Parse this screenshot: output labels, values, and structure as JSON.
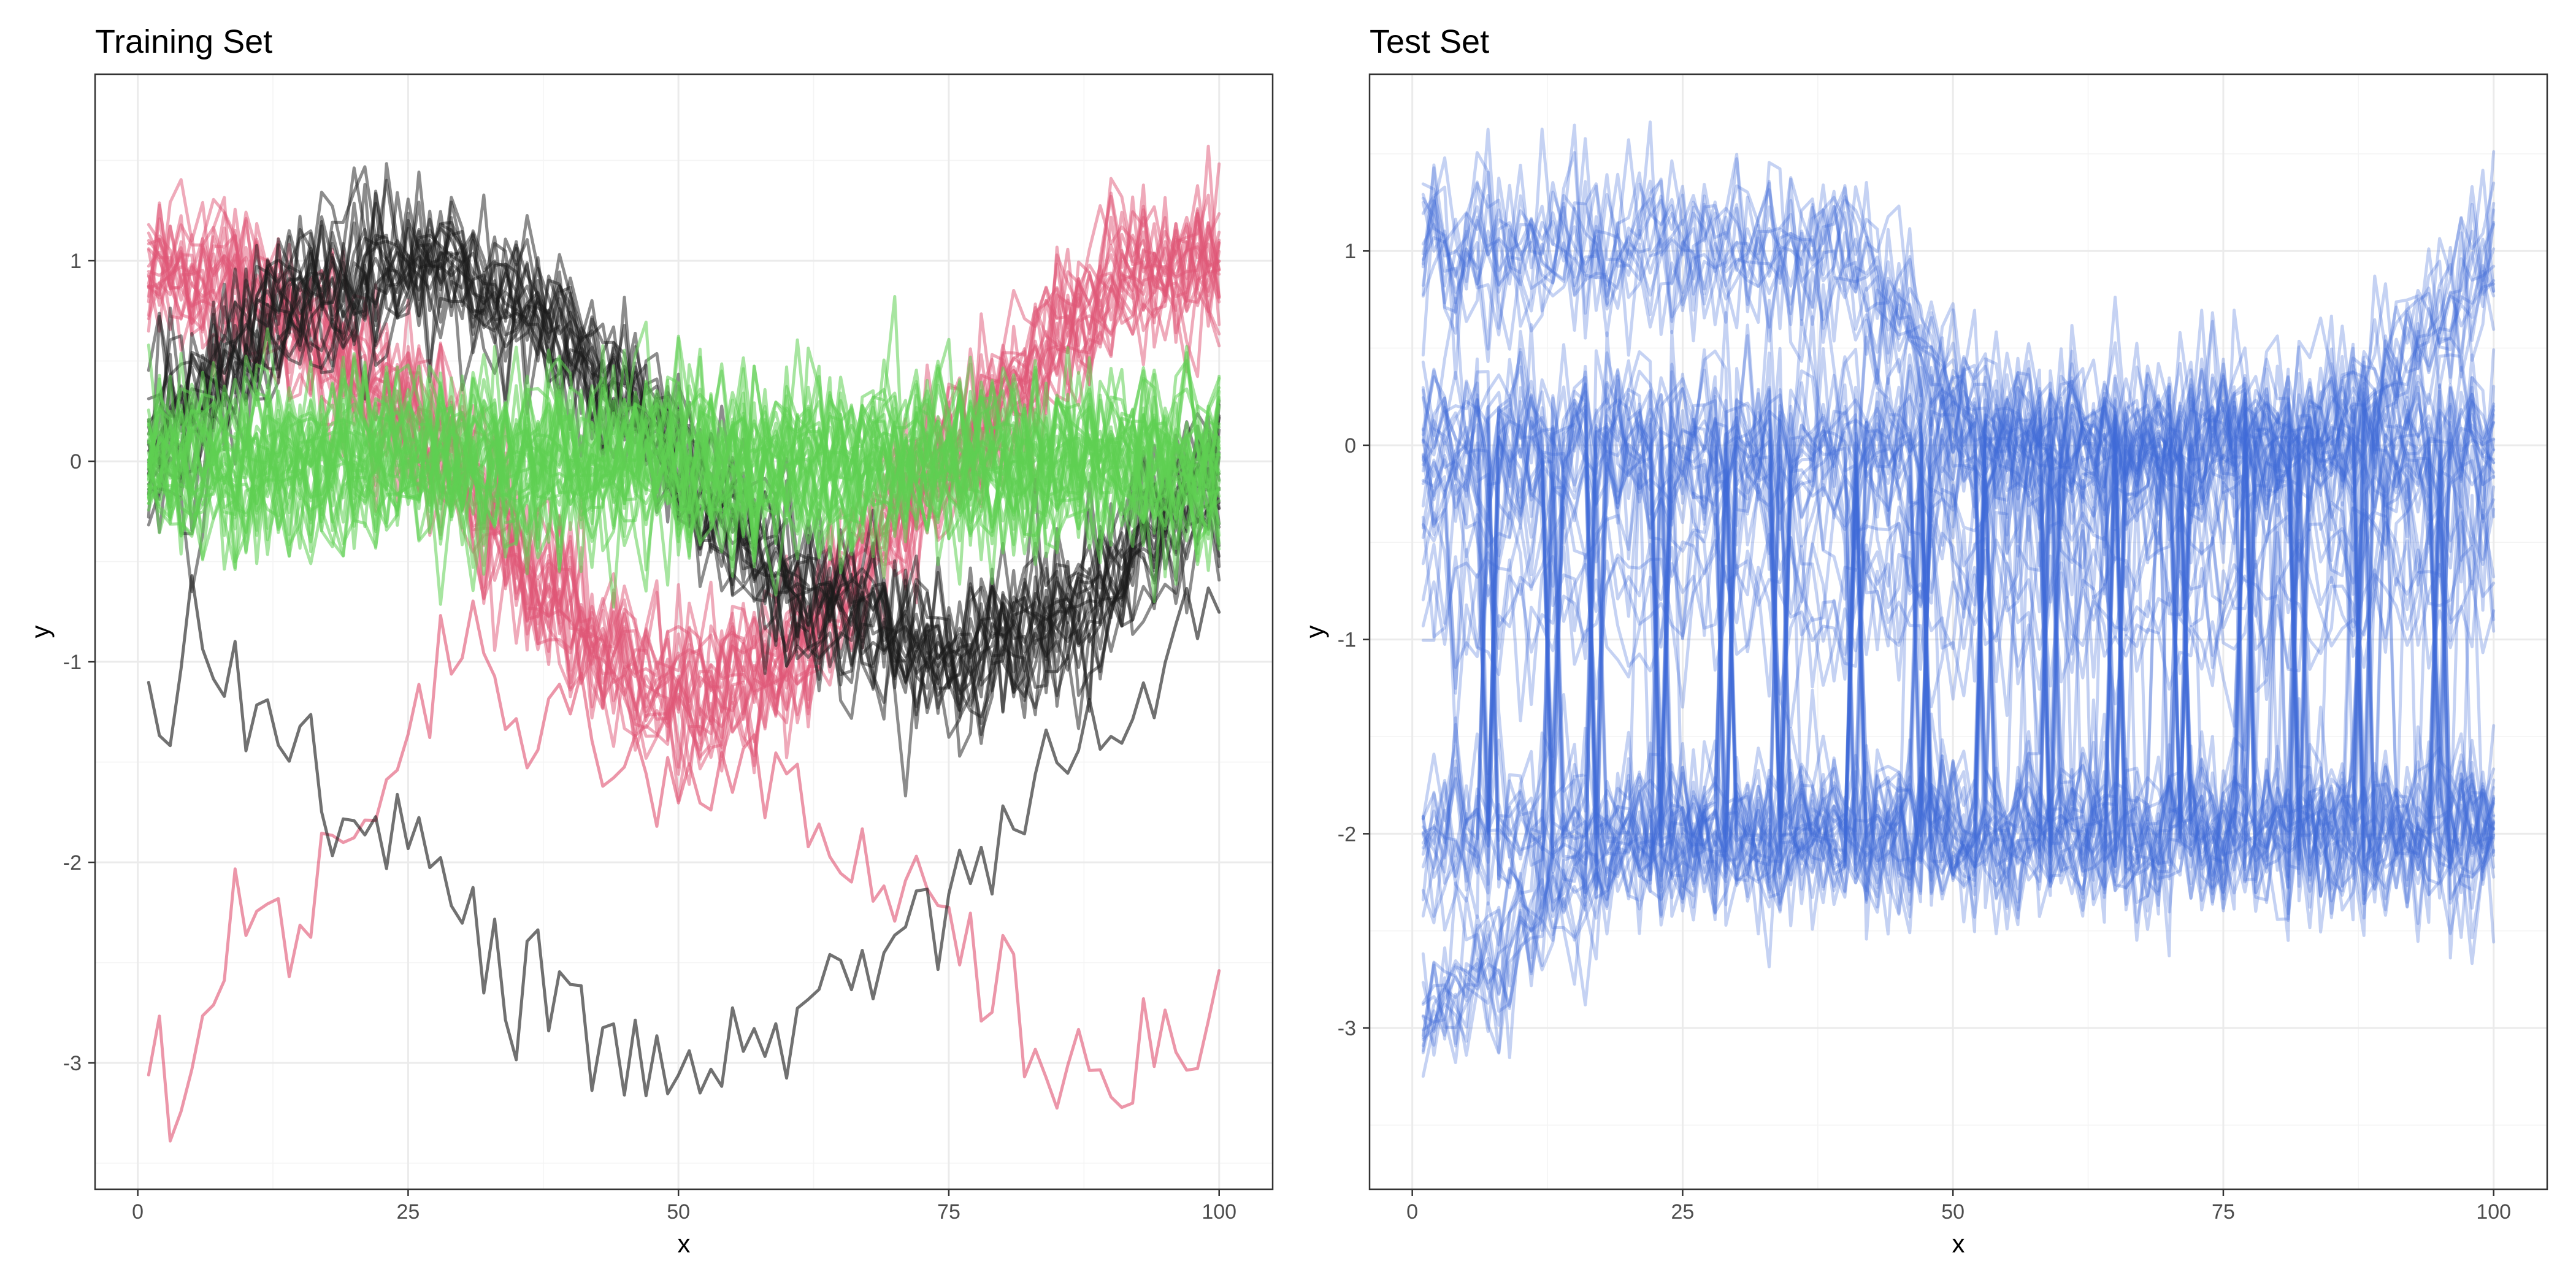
{
  "chart_data": [
    {
      "type": "line",
      "title": "Training Set",
      "xlabel": "x",
      "ylabel": "y",
      "xlim": [
        -3.95,
        104.95
      ],
      "ylim": [
        -3.63,
        1.93
      ],
      "x_ticks": [
        0,
        25,
        50,
        75,
        100
      ],
      "y_ticks": [
        -3,
        -2,
        -1,
        0,
        1
      ],
      "x_tick_labels": [
        "0",
        "25",
        "50",
        "75",
        "100"
      ],
      "y_tick_labels": [
        "-3",
        "-2",
        "-1",
        "0",
        "1"
      ],
      "grid": true,
      "legend": "none",
      "x_range": [
        1,
        100
      ],
      "colors": {
        "class_a": "#e05575",
        "class_b": "#1a1a1a",
        "class_c": "#5ecf52"
      },
      "series_groups": [
        {
          "class": "red",
          "color": "#e05575",
          "count": 20,
          "pattern": "cosine-like: starts near 1, decreases to about -1.2 at x≈50, returns to about 1 at x=100",
          "key_points": {
            "x": [
              1,
              10,
              25,
              40,
              50,
              60,
              75,
              90,
              100
            ],
            "y": [
              1.0,
              0.9,
              0.3,
              -0.8,
              -1.2,
              -1.0,
              0.0,
              0.9,
              1.0
            ]
          }
        },
        {
          "class": "black",
          "color": "#1a1a1a",
          "count": 20,
          "pattern": "sine-like: starts near 0, peaks about 1 at x≈25, troughs about -1 at x≈75, returns near 0",
          "key_points": {
            "x": [
              1,
              12,
              25,
              38,
              50,
              62,
              75,
              88,
              100
            ],
            "y": [
              0.0,
              0.7,
              1.0,
              0.7,
              0.0,
              -0.7,
              -1.0,
              -0.7,
              0.0
            ]
          }
        },
        {
          "class": "green",
          "color": "#5ecf52",
          "count": 30,
          "pattern": "flat noise around 0",
          "key_points": {
            "x": [
              1,
              50,
              100
            ],
            "y": [
              0.0,
              0.0,
              0.0
            ]
          }
        }
      ],
      "highlighted_series": [
        {
          "color": "#e05575",
          "key_points": {
            "x": [
              1,
              3,
              5,
              10,
              15,
              20,
              25,
              30,
              35,
              40,
              45,
              50,
              55,
              60,
              65,
              70,
              75,
              80,
              85,
              90,
              95,
              100
            ],
            "y": [
              -3.2,
              -3.1,
              -2.9,
              -2.3,
              -2.3,
              -1.8,
              -1.2,
              -1.0,
              -1.2,
              -1.3,
              -1.5,
              -1.6,
              -1.6,
              -1.7,
              -2.0,
              -2.1,
              -2.3,
              -2.8,
              -3.0,
              -3.2,
              -2.9,
              -2.7
            ]
          }
        },
        {
          "color": "#1a1a1a",
          "key_points": {
            "x": [
              1,
              5,
              10,
              15,
              20,
              25,
              30,
              35,
              40,
              45,
              50,
              55,
              60,
              65,
              70,
              75,
              80,
              85,
              90,
              95,
              100
            ],
            "y": [
              -1.25,
              -0.8,
              -1.2,
              -1.5,
              -1.75,
              -1.9,
              -2.2,
              -2.5,
              -2.7,
              -3.0,
              -3.1,
              -3.0,
              -2.8,
              -2.5,
              -2.6,
              -2.2,
              -1.8,
              -1.5,
              -1.3,
              -1.0,
              -0.6
            ]
          }
        }
      ]
    },
    {
      "type": "line",
      "title": "Test Set",
      "xlabel": "x",
      "ylabel": "y",
      "xlim": [
        -3.95,
        104.95
      ],
      "ylim": [
        -3.83,
        1.91
      ],
      "x_ticks": [
        0,
        25,
        50,
        75,
        100
      ],
      "y_ticks": [
        -3,
        -2,
        -1,
        0,
        1
      ],
      "x_tick_labels": [
        "0",
        "25",
        "50",
        "75",
        "100"
      ],
      "y_tick_labels": [
        "-3",
        "-2",
        "-1",
        "0",
        "1"
      ],
      "grid": true,
      "legend": "none",
      "x_range": [
        1,
        100
      ],
      "colors": {
        "series": "#3f6ad8"
      },
      "series_groups": [
        {
          "color": "#3f6ad8",
          "count": 70,
          "pattern": "bands near y=1, 0 and -2 with steep switches between 0 and -2 roughly every 6–8 x-units; a group rises from about -3 at x=1 to -2 by x≈20; some traces move from about 1 down to 0 after x≈40 and back to 1 near x≈90",
          "switch_x": [
            7,
            13,
            17,
            23,
            29,
            34,
            41,
            47,
            53,
            59,
            65,
            71,
            77,
            82,
            88,
            95
          ]
        }
      ]
    }
  ]
}
